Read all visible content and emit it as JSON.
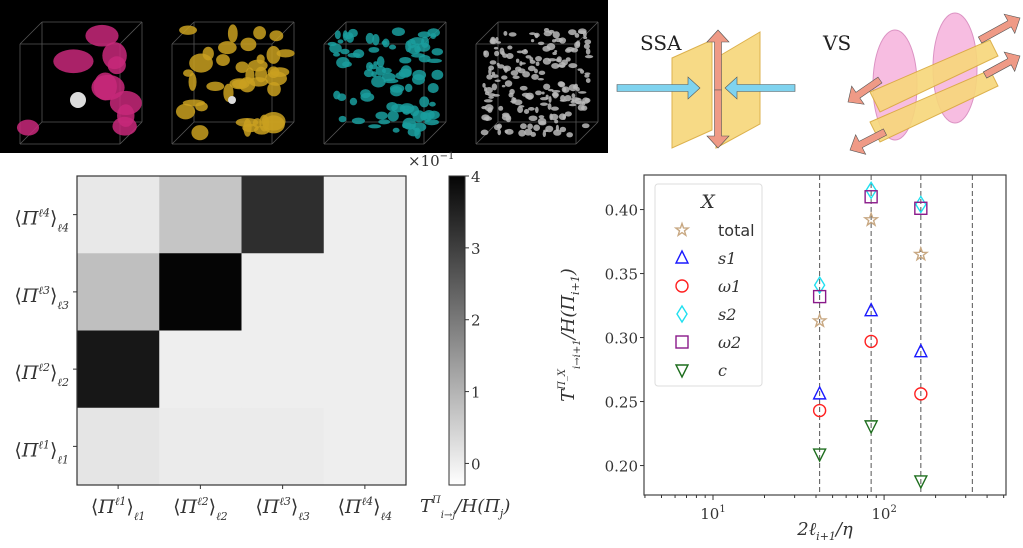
{
  "top_panel": {
    "cube_colors": [
      "#c8287a",
      "#c9a020",
      "#1a9e9e",
      "#b8b8b8"
    ],
    "diagram_labels": {
      "ssa": "SSA",
      "vs": "VS"
    },
    "colors": {
      "plane": "#f7d77a",
      "plane_edge": "#d9a93a",
      "blue_arrow": "#7fd3ef",
      "pink_arrow": "#ef9a86",
      "ellipse": "#f5a8d8"
    }
  },
  "chart_data": [
    {
      "type": "heatmap",
      "title": "",
      "row_labels": [
        {
          "base": "Π",
          "sup": "ℓ4",
          "sub": "ℓ4"
        },
        {
          "base": "Π",
          "sup": "ℓ3",
          "sub": "ℓ3"
        },
        {
          "base": "Π",
          "sup": "ℓ2",
          "sub": "ℓ2"
        },
        {
          "base": "Π",
          "sup": "ℓ1",
          "sub": "ℓ1"
        }
      ],
      "col_labels": [
        {
          "base": "Π",
          "sup": "ℓ1",
          "sub": "ℓ1"
        },
        {
          "base": "Π",
          "sup": "ℓ2",
          "sub": "ℓ2"
        },
        {
          "base": "Π",
          "sup": "ℓ3",
          "sub": "ℓ3"
        },
        {
          "base": "Π",
          "sup": "ℓ4",
          "sub": "ℓ4"
        }
      ],
      "values_x1e-1": [
        [
          0.1,
          0.7,
          3.3,
          0.0
        ],
        [
          0.8,
          4.0,
          0.0,
          0.0
        ],
        [
          3.7,
          0.0,
          0.0,
          0.0
        ],
        [
          0.15,
          0.05,
          0.05,
          0.0
        ]
      ],
      "colorbar": {
        "range": [
          -0.3,
          4
        ],
        "ticks": [
          "0",
          "1",
          "2",
          "3",
          "4"
        ],
        "multiplier": "×10",
        "multiplier_exp": "−1",
        "label": {
          "main": "T",
          "sup": "Π",
          "sub": "i→j",
          "rest": "/H(Π",
          "rest_sub": "j",
          "close": ")"
        },
        "colormap": "greys"
      }
    },
    {
      "type": "scatter",
      "xscale": "log",
      "xlim": [
        3.95,
        516
      ],
      "ylim": [
        0.177,
        0.427
      ],
      "xlabel": "2ℓ",
      "xlabel_sub": "i+1",
      "xlabel_rest": "/η",
      "ylabel": "T",
      "ylabel_sup": "Π_X",
      "ylabel_sub": "i→i+1",
      "ylabel_rest": "/H(Π",
      "ylabel_rest_sub": "i+1",
      "ylabel_close": ")",
      "x_ticks": [
        {
          "value": 10,
          "base": "10",
          "exp": "1"
        },
        {
          "value": 100,
          "base": "10",
          "exp": "2"
        }
      ],
      "y_ticks": [
        "0.20",
        "0.25",
        "0.30",
        "0.35",
        "0.40"
      ],
      "vlines": [
        42,
        84,
        164,
        328
      ],
      "x": [
        42,
        84,
        164
      ],
      "legend": {
        "title": "X",
        "placement": "upper-left"
      },
      "series": [
        {
          "name": "total",
          "marker": "star",
          "color": "#c8a882",
          "values": [
            0.313,
            0.392,
            0.365
          ]
        },
        {
          "name": "s1",
          "marker": "triangle-up",
          "color": "#1a1aff",
          "values": [
            0.256,
            0.321,
            0.289
          ]
        },
        {
          "name": "ω1",
          "marker": "circle",
          "color": "#ff2020",
          "values": [
            0.243,
            0.297,
            0.256
          ]
        },
        {
          "name": "s2",
          "marker": "diamond",
          "color": "#20e0f0",
          "values": [
            0.341,
            0.415,
            0.404
          ]
        },
        {
          "name": "ω2",
          "marker": "square",
          "color": "#8a1a8a",
          "values": [
            0.332,
            0.41,
            0.401
          ]
        },
        {
          "name": "c",
          "marker": "triangle-down",
          "color": "#1e6e1e",
          "values": [
            0.209,
            0.231,
            0.188
          ]
        }
      ]
    }
  ]
}
